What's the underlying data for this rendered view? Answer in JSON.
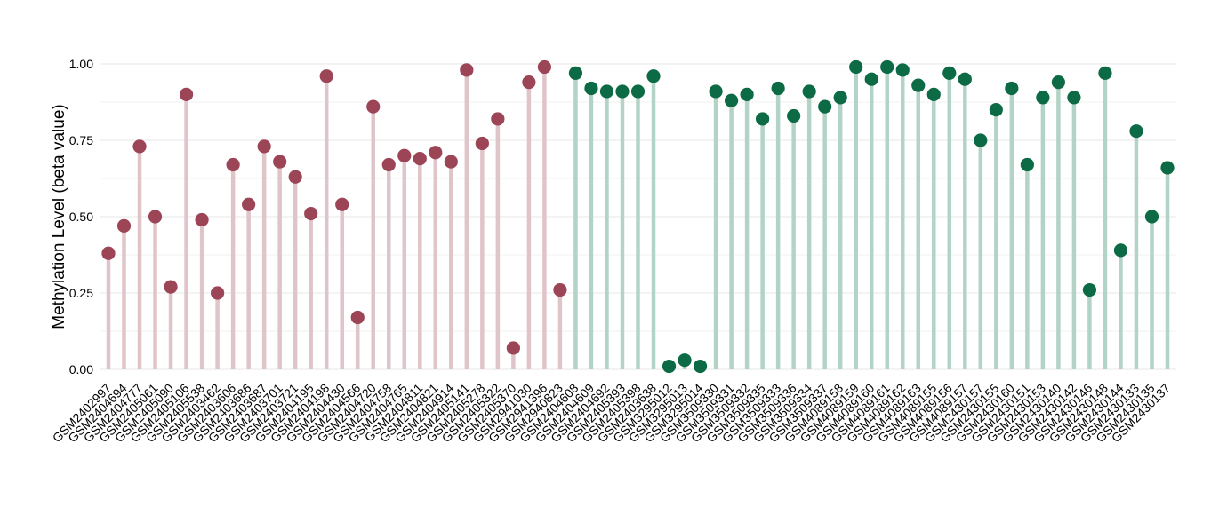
{
  "colors": {
    "group_a_stem": "#dfc4c9",
    "group_a_point": "#9c4556",
    "group_b_stem": "#b3d3c6",
    "group_b_point": "#0c6a45",
    "grid": "#ececec"
  },
  "chart_data": {
    "type": "lollipop",
    "title": "",
    "xlabel": "",
    "ylabel": "Methylation Level (beta value)",
    "ylim": [
      0,
      1
    ],
    "yticks": [
      "0.00",
      "0.25",
      "0.50",
      "0.75",
      "1.00"
    ],
    "grid": true,
    "points": [
      {
        "label": "GSM2402997",
        "value": 0.38,
        "group": "a"
      },
      {
        "label": "GSM2404694",
        "value": 0.47,
        "group": "a"
      },
      {
        "label": "GSM2404777",
        "value": 0.73,
        "group": "a"
      },
      {
        "label": "GSM2405061",
        "value": 0.5,
        "group": "a"
      },
      {
        "label": "GSM2405090",
        "value": 0.27,
        "group": "a"
      },
      {
        "label": "GSM2405106",
        "value": 0.9,
        "group": "a"
      },
      {
        "label": "GSM2405538",
        "value": 0.49,
        "group": "a"
      },
      {
        "label": "GSM2403462",
        "value": 0.25,
        "group": "a"
      },
      {
        "label": "GSM2403606",
        "value": 0.67,
        "group": "a"
      },
      {
        "label": "GSM2403686",
        "value": 0.54,
        "group": "a"
      },
      {
        "label": "GSM2403687",
        "value": 0.73,
        "group": "a"
      },
      {
        "label": "GSM2403701",
        "value": 0.68,
        "group": "a"
      },
      {
        "label": "GSM2403721",
        "value": 0.63,
        "group": "a"
      },
      {
        "label": "GSM2404195",
        "value": 0.51,
        "group": "a"
      },
      {
        "label": "GSM2404198",
        "value": 0.96,
        "group": "a"
      },
      {
        "label": "GSM2404430",
        "value": 0.54,
        "group": "a"
      },
      {
        "label": "GSM2404566",
        "value": 0.17,
        "group": "a"
      },
      {
        "label": "GSM2404720",
        "value": 0.86,
        "group": "a"
      },
      {
        "label": "GSM2404758",
        "value": 0.67,
        "group": "a"
      },
      {
        "label": "GSM2404765",
        "value": 0.7,
        "group": "a"
      },
      {
        "label": "GSM2404811",
        "value": 0.69,
        "group": "a"
      },
      {
        "label": "GSM2404821",
        "value": 0.71,
        "group": "a"
      },
      {
        "label": "GSM2404914",
        "value": 0.68,
        "group": "a"
      },
      {
        "label": "GSM2405141",
        "value": 0.98,
        "group": "a"
      },
      {
        "label": "GSM2405278",
        "value": 0.74,
        "group": "a"
      },
      {
        "label": "GSM2405322",
        "value": 0.82,
        "group": "a"
      },
      {
        "label": "GSM2405370",
        "value": 0.07,
        "group": "a"
      },
      {
        "label": "GSM2941030",
        "value": 0.94,
        "group": "a"
      },
      {
        "label": "GSM2941396",
        "value": 0.99,
        "group": "a"
      },
      {
        "label": "GSM2940823",
        "value": 0.26,
        "group": "a"
      },
      {
        "label": "GSM2404608",
        "value": 0.97,
        "group": "b"
      },
      {
        "label": "GSM2404609",
        "value": 0.92,
        "group": "b"
      },
      {
        "label": "GSM2404692",
        "value": 0.91,
        "group": "b"
      },
      {
        "label": "GSM2405393",
        "value": 0.91,
        "group": "b"
      },
      {
        "label": "GSM2405398",
        "value": 0.91,
        "group": "b"
      },
      {
        "label": "GSM2403638",
        "value": 0.96,
        "group": "b"
      },
      {
        "label": "GSM3295012",
        "value": 0.01,
        "group": "b"
      },
      {
        "label": "GSM3295013",
        "value": 0.03,
        "group": "b"
      },
      {
        "label": "GSM3295014",
        "value": 0.01,
        "group": "b"
      },
      {
        "label": "GSM3509330",
        "value": 0.91,
        "group": "b"
      },
      {
        "label": "GSM3509331",
        "value": 0.88,
        "group": "b"
      },
      {
        "label": "GSM3509332",
        "value": 0.9,
        "group": "b"
      },
      {
        "label": "GSM3509335",
        "value": 0.82,
        "group": "b"
      },
      {
        "label": "GSM3509333",
        "value": 0.92,
        "group": "b"
      },
      {
        "label": "GSM3509336",
        "value": 0.83,
        "group": "b"
      },
      {
        "label": "GSM3509334",
        "value": 0.91,
        "group": "b"
      },
      {
        "label": "GSM3509337",
        "value": 0.86,
        "group": "b"
      },
      {
        "label": "GSM4089158",
        "value": 0.89,
        "group": "b"
      },
      {
        "label": "GSM4089159",
        "value": 0.99,
        "group": "b"
      },
      {
        "label": "GSM4089160",
        "value": 0.95,
        "group": "b"
      },
      {
        "label": "GSM4089161",
        "value": 0.99,
        "group": "b"
      },
      {
        "label": "GSM4089162",
        "value": 0.98,
        "group": "b"
      },
      {
        "label": "GSM4089163",
        "value": 0.93,
        "group": "b"
      },
      {
        "label": "GSM4089155",
        "value": 0.9,
        "group": "b"
      },
      {
        "label": "GSM4089156",
        "value": 0.97,
        "group": "b"
      },
      {
        "label": "GSM4089157",
        "value": 0.95,
        "group": "b"
      },
      {
        "label": "GSM2430157",
        "value": 0.75,
        "group": "b"
      },
      {
        "label": "GSM2430155",
        "value": 0.85,
        "group": "b"
      },
      {
        "label": "GSM2430160",
        "value": 0.92,
        "group": "b"
      },
      {
        "label": "GSM2430151",
        "value": 0.67,
        "group": "b"
      },
      {
        "label": "GSM2430153",
        "value": 0.89,
        "group": "b"
      },
      {
        "label": "GSM2430140",
        "value": 0.94,
        "group": "b"
      },
      {
        "label": "GSM2430142",
        "value": 0.89,
        "group": "b"
      },
      {
        "label": "GSM2430146",
        "value": 0.26,
        "group": "b"
      },
      {
        "label": "GSM2430148",
        "value": 0.97,
        "group": "b"
      },
      {
        "label": "GSM2430144",
        "value": 0.39,
        "group": "b"
      },
      {
        "label": "GSM2430133",
        "value": 0.78,
        "group": "b"
      },
      {
        "label": "GSM2430135",
        "value": 0.5,
        "group": "b"
      },
      {
        "label": "GSM2430137",
        "value": 0.66,
        "group": "b"
      }
    ]
  }
}
